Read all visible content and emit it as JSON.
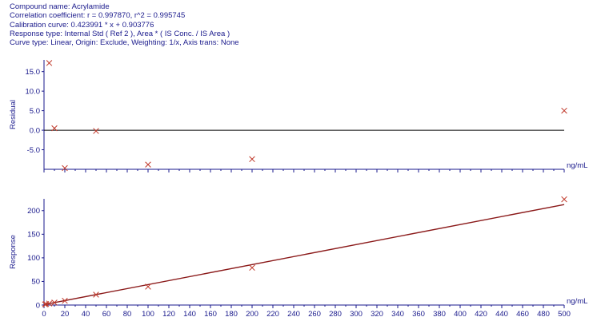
{
  "header": {
    "compound": "Compound name: Acrylamide",
    "correlation": "Correlation coefficient: r = 0.997870, r^2 = 0.995745",
    "calibration": "Calibration curve: 0.423991 * x + 0.903776",
    "response_type": "Response type: Internal Std ( Ref 2 ), Area * ( IS Conc. / IS Area )",
    "curve_type": "Curve type: Linear, Origin: Exclude, Weighting: 1/x, Axis trans: None"
  },
  "colors": {
    "axis": "#1a1a8c",
    "marker": "#c0392b",
    "fit_line": "#8b1a1a"
  },
  "chart_data": [
    {
      "type": "scatter",
      "ylabel": "Residual",
      "unit": "ng/mL",
      "xlim": [
        0,
        500
      ],
      "ylim": [
        -10,
        18
      ],
      "yticks": [
        -5.0,
        0.0,
        5.0,
        10.0,
        15.0
      ],
      "ytick_labels": [
        "-5.0",
        "0.0",
        "5.0",
        "10.0",
        "15.0"
      ],
      "zero_line": true,
      "points": [
        {
          "x": 5,
          "y": 17.2
        },
        {
          "x": 10,
          "y": 0.5
        },
        {
          "x": 20,
          "y": -9.7
        },
        {
          "x": 50,
          "y": -0.2
        },
        {
          "x": 100,
          "y": -8.8
        },
        {
          "x": 200,
          "y": -7.4
        },
        {
          "x": 500,
          "y": 5.0
        }
      ]
    },
    {
      "type": "scatter",
      "ylabel": "Response",
      "unit": "ng/mL",
      "xlim": [
        0,
        500
      ],
      "ylim": [
        0,
        225
      ],
      "yticks": [
        0,
        50,
        100,
        150,
        200
      ],
      "ytick_labels": [
        "0",
        "50",
        "100",
        "150",
        "200"
      ],
      "xticks": [
        0,
        20,
        40,
        60,
        80,
        100,
        120,
        140,
        160,
        180,
        200,
        220,
        240,
        260,
        280,
        300,
        320,
        340,
        360,
        380,
        400,
        420,
        440,
        460,
        480,
        500
      ],
      "xtick_labels": [
        "0",
        "20",
        "40",
        "60",
        "80",
        "100",
        "120",
        "140",
        "160",
        "180",
        "200",
        "220",
        "240",
        "260",
        "280",
        "300",
        "320",
        "340",
        "360",
        "380",
        "400",
        "420",
        "440",
        "460",
        "480",
        "500"
      ],
      "fit_line": {
        "slope": 0.423991,
        "intercept": 0.903776
      },
      "points": [
        {
          "x": 1,
          "y": 1.5
        },
        {
          "x": 2,
          "y": 2.2
        },
        {
          "x": 5,
          "y": 3.2
        },
        {
          "x": 10,
          "y": 5.2
        },
        {
          "x": 20,
          "y": 9.0
        },
        {
          "x": 50,
          "y": 22.0
        },
        {
          "x": 100,
          "y": 39.0
        },
        {
          "x": 200,
          "y": 79.0
        },
        {
          "x": 500,
          "y": 224.0
        }
      ]
    }
  ]
}
